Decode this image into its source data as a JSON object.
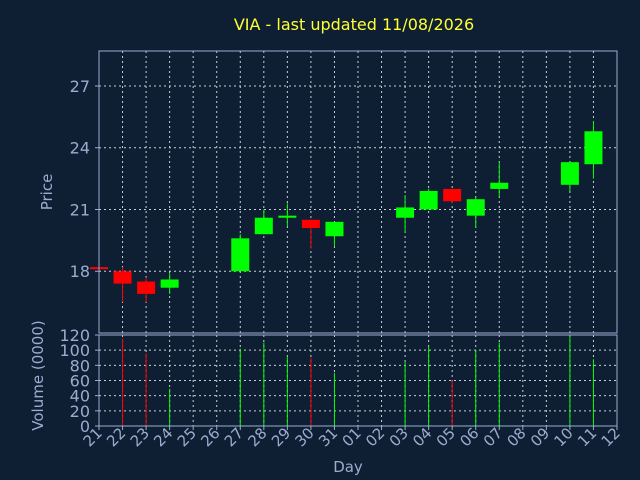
{
  "chart_data": {
    "type": "candlestick",
    "title": "VIA - last updated 11/08/2026",
    "xlabel": "Day",
    "price_panel": {
      "ylabel": "Price",
      "ylim": [
        15.0,
        28.7
      ],
      "yticks": [
        18,
        21,
        24,
        27
      ],
      "grid": true
    },
    "volume_panel": {
      "ylabel": "Volume (0000)",
      "ylim": [
        0,
        120
      ],
      "yticks": [
        0,
        20,
        40,
        60,
        80,
        100,
        120
      ],
      "grid": true
    },
    "x_tick_labels": [
      "21",
      "22",
      "23",
      "24",
      "25",
      "26",
      "27",
      "28",
      "29",
      "30",
      "31",
      "01",
      "02",
      "03",
      "04",
      "05",
      "06",
      "07",
      "08",
      "09",
      "10",
      "11",
      "12"
    ],
    "up_color": "#00ff00",
    "down_color": "#ff0000",
    "candles": [
      {
        "x": "21",
        "open": 18.2,
        "high": 18.2,
        "low": 18.0,
        "close": 18.1,
        "volume": 0
      },
      {
        "x": "22",
        "open": 18.0,
        "high": 18.2,
        "low": 16.5,
        "close": 17.4,
        "volume": 115
      },
      {
        "x": "23",
        "open": 17.5,
        "high": 17.7,
        "low": 16.5,
        "close": 16.9,
        "volume": 96
      },
      {
        "x": "24",
        "open": 17.2,
        "high": 17.9,
        "low": 16.9,
        "close": 17.6,
        "volume": 49
      },
      {
        "x": "27",
        "open": 18.0,
        "high": 19.8,
        "low": 18.0,
        "close": 19.6,
        "volume": 102
      },
      {
        "x": "28",
        "open": 19.8,
        "high": 21.0,
        "low": 19.8,
        "close": 20.6,
        "volume": 110
      },
      {
        "x": "29",
        "open": 20.6,
        "high": 21.3,
        "low": 20.2,
        "close": 20.7,
        "volume": 92
      },
      {
        "x": "30",
        "open": 20.5,
        "high": 20.5,
        "low": 19.1,
        "close": 20.1,
        "volume": 90
      },
      {
        "x": "31",
        "open": 19.7,
        "high": 20.4,
        "low": 19.2,
        "close": 20.4,
        "volume": 70
      },
      {
        "x": "03",
        "open": 20.6,
        "high": 21.7,
        "low": 19.9,
        "close": 21.1,
        "volume": 85
      },
      {
        "x": "04",
        "open": 21.0,
        "high": 22.0,
        "low": 21.0,
        "close": 21.9,
        "volume": 105
      },
      {
        "x": "05",
        "open": 22.0,
        "high": 22.0,
        "low": 21.3,
        "close": 21.4,
        "volume": 60
      },
      {
        "x": "06",
        "open": 20.7,
        "high": 21.6,
        "low": 20.1,
        "close": 21.5,
        "volume": 100
      },
      {
        "x": "07",
        "open": 22.0,
        "high": 23.3,
        "low": 21.6,
        "close": 22.3,
        "volume": 110
      },
      {
        "x": "10",
        "open": 22.2,
        "high": 23.3,
        "low": 21.9,
        "close": 23.3,
        "volume": 118
      },
      {
        "x": "11",
        "open": 23.2,
        "high": 25.3,
        "low": 22.5,
        "close": 24.8,
        "volume": 88
      }
    ]
  }
}
